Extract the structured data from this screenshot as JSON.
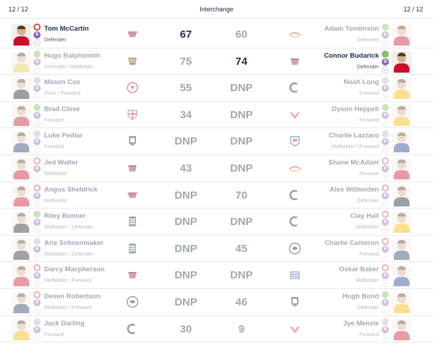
{
  "header": {
    "left_count": "12 / 12",
    "title": "Interchange",
    "right_count": "12 / 12"
  },
  "rows": [
    {
      "left": {
        "name": "Tom McCartin",
        "position": "Defender",
        "score": "67",
        "strong": true,
        "team": "essendon-logo"
      },
      "right": {
        "name": "Adam Tomlinson",
        "position": "Defender",
        "score": "60",
        "strong": false,
        "team": "gold-coast-logo"
      }
    },
    {
      "left": {
        "name": "Hugo Ralphsmith",
        "position": "Defender / Midfielder",
        "score": "75",
        "strong": false,
        "team": "hawthorn-logo"
      },
      "right": {
        "name": "Connor Budarick",
        "position": "Defender",
        "score": "74",
        "strong": true,
        "team": "melbourne-logo"
      }
    },
    {
      "left": {
        "name": "Mason Cox",
        "position": "Ruck / Forward",
        "score": "55",
        "strong": false,
        "team": "brisbane-logo"
      },
      "right": {
        "name": "Noah Long",
        "position": "Forward",
        "score": "DNP",
        "strong": false,
        "team": "carlton-logo"
      }
    },
    {
      "left": {
        "name": "Brad Close",
        "position": "Forward",
        "score": "34",
        "strong": false,
        "team": "st-kilda-logo"
      },
      "right": {
        "name": "Dyson Heppell",
        "position": "Forward",
        "score": "DNP",
        "strong": false,
        "team": "sydney-logo"
      }
    },
    {
      "left": {
        "name": "Luke Pedlar",
        "position": "Forward",
        "score": "DNP",
        "strong": false,
        "team": "port-adelaide-logo"
      },
      "right": {
        "name": "Charlie Lazzaro",
        "position": "Midfielder / Forward",
        "score": "DNP",
        "strong": false,
        "team": "western-bulldogs-logo"
      }
    },
    {
      "left": {
        "name": "Jed Walter",
        "position": "Midfielder",
        "score": "43",
        "strong": false,
        "team": "melbourne-logo"
      },
      "right": {
        "name": "Shane McAdam",
        "position": "Forward",
        "score": "DNP",
        "strong": false,
        "team": "gold-coast-logo"
      }
    },
    {
      "left": {
        "name": "Angus Sheldrick",
        "position": "Midfielder",
        "score": "DNP",
        "strong": false,
        "team": "essendon-logo"
      },
      "right": {
        "name": "Alex Witherden",
        "position": "Defender",
        "score": "70",
        "strong": false,
        "team": "carlton-logo"
      }
    },
    {
      "left": {
        "name": "Riley Bonner",
        "position": "Midfielder / Defender",
        "score": "DNP",
        "strong": false,
        "team": "geelong-logo"
      },
      "right": {
        "name": "Clay Hall",
        "position": "Midfielder",
        "score": "DNP",
        "strong": false,
        "team": "carlton-logo"
      }
    },
    {
      "left": {
        "name": "Arie Schoenmaker",
        "position": "Midfielder / Defender",
        "score": "DNP",
        "strong": false,
        "team": "geelong-logo"
      },
      "right": {
        "name": "Charlie Cameron",
        "position": "Forward",
        "score": "45",
        "strong": false,
        "team": "collingwood-logo"
      }
    },
    {
      "left": {
        "name": "Darcy Macpherson",
        "position": "Midfielder / Forward",
        "score": "DNP",
        "strong": false,
        "team": "melbourne-logo"
      },
      "right": {
        "name": "Oskar Baker",
        "position": "Midfielder",
        "score": "DNP",
        "strong": false,
        "team": "north-melbourne-logo"
      }
    },
    {
      "left": {
        "name": "Deven Robertson",
        "position": "Midfielder / Forward",
        "score": "DNP",
        "strong": false,
        "team": "collingwood-logo"
      },
      "right": {
        "name": "Hugh Bond",
        "position": "Defender",
        "score": "46",
        "strong": false,
        "team": "port-adelaide-logo"
      }
    },
    {
      "left": {
        "name": "Jack Darling",
        "position": "Forward",
        "score": "30",
        "strong": false,
        "team": "carlton-logo"
      },
      "right": {
        "name": "Jye Menzie",
        "position": "Forward",
        "score": "9",
        "strong": false,
        "team": "sydney-logo"
      }
    }
  ],
  "colors": {
    "text": "#1f2b4a",
    "red_ring": "#e0493f",
    "green": "#7cc45b",
    "purple": "#8b5fb8",
    "gray": "#b7bcc4"
  },
  "badge_letters": {
    "first": "B",
    "second": "S"
  }
}
